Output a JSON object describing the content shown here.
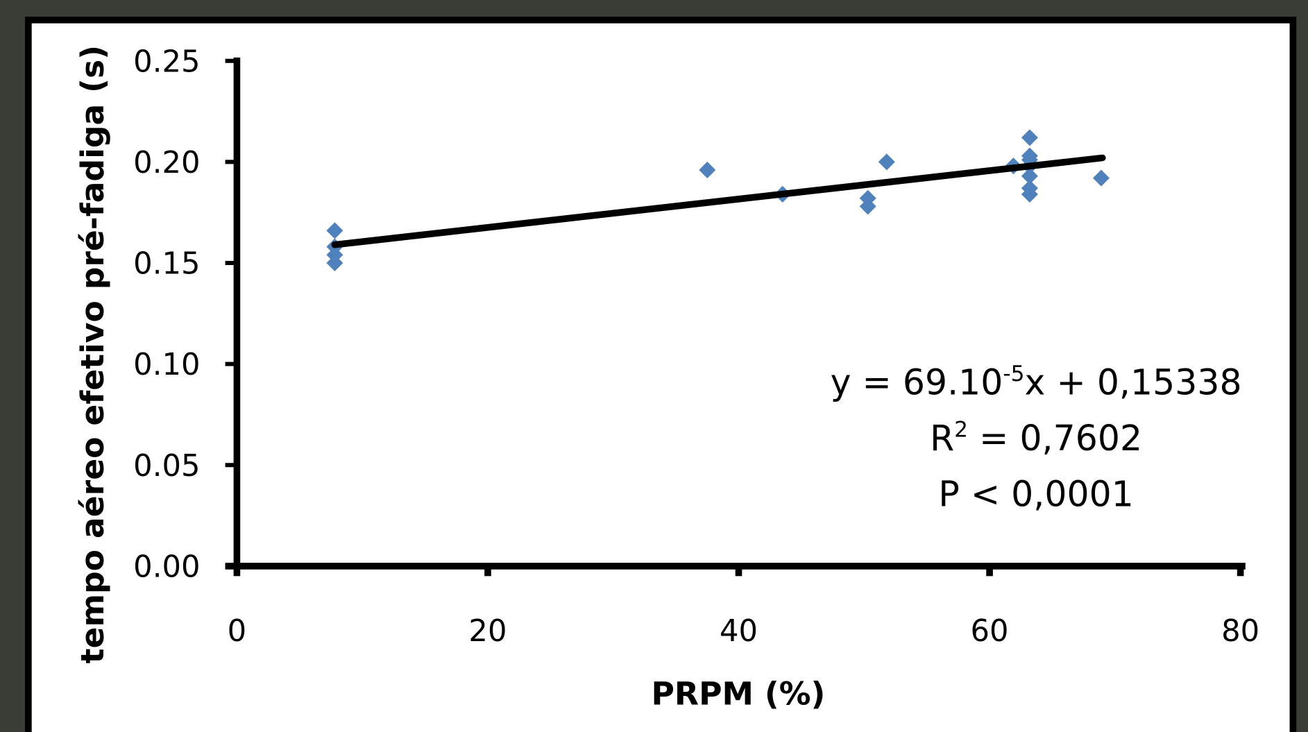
{
  "chart_data": {
    "type": "scatter",
    "xlabel": "PRPM (%)",
    "ylabel": "tempo aéreo efetivo pré-fadiga (s)",
    "color": "#4f81bd",
    "x": [
      7.8,
      7.8,
      7.8,
      7.8,
      37.5,
      43.5,
      50.3,
      50.3,
      51.8,
      61.9,
      63.2,
      63.2,
      63.2,
      63.2,
      63.2,
      63.2,
      63.2,
      68.9
    ],
    "values": [
      0.166,
      0.158,
      0.154,
      0.15,
      0.196,
      0.184,
      0.182,
      0.178,
      0.2,
      0.198,
      0.212,
      0.203,
      0.201,
      0.198,
      0.193,
      0.187,
      0.184,
      0.192
    ],
    "trend": {
      "x": [
        7.8,
        69
      ],
      "y": [
        0.159,
        0.202
      ]
    },
    "xlim": [
      0,
      80
    ],
    "xticks": [
      0,
      20,
      40,
      60,
      80
    ],
    "ylim": [
      0,
      0.25
    ],
    "yticks": [
      {
        "value": 0,
        "label": "0.00"
      },
      {
        "value": 0.05,
        "label": "0.05"
      },
      {
        "value": 0.1,
        "label": "0.10"
      },
      {
        "value": 0.15,
        "label": "0.15"
      },
      {
        "value": 0.2,
        "label": "0.20"
      },
      {
        "value": 0.25,
        "label": "0.25"
      }
    ],
    "annotations": {
      "equation": {
        "before": "y = 69.10",
        "sup": "-5",
        "after": "x + 0,15338"
      },
      "r2": {
        "before": "R",
        "sup": "2",
        "after": " = 0,7602"
      },
      "p": "P < 0,0001"
    }
  }
}
